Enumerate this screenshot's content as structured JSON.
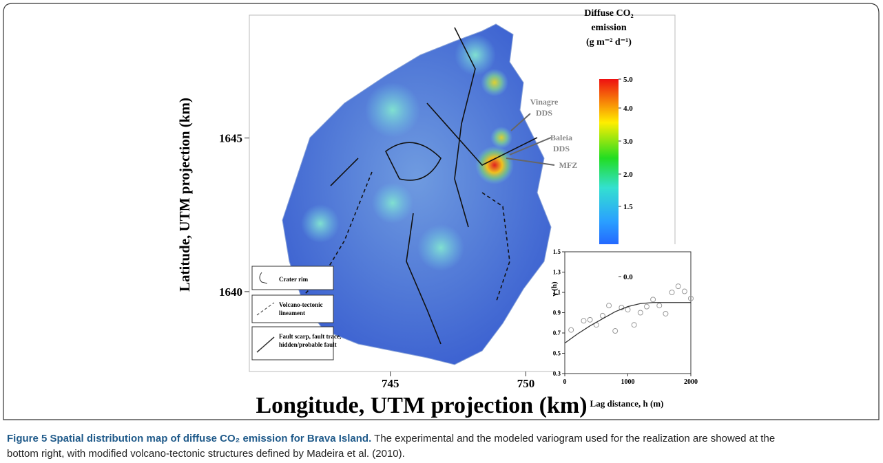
{
  "figure": {
    "map": {
      "xlabel": "Longitude, UTM projection (km)",
      "ylabel": "Latitude, UTM projection (km)",
      "xlim": [
        739.8,
        755.5
      ],
      "ylim": [
        1637.4,
        1649
      ],
      "xticks": [
        745,
        750
      ],
      "yticks": [
        1640,
        1645
      ],
      "annotations": [
        "Vinagre",
        "DDS",
        "Baleia",
        "DDS",
        "MFZ"
      ],
      "legend": [
        {
          "lines": [
            "Crater rim"
          ]
        },
        {
          "lines": [
            "Volcano-tectonic",
            "lineament"
          ]
        },
        {
          "lines": [
            "Fault scarp, fault trace,",
            "hidden/probable fault"
          ]
        }
      ]
    },
    "colorbar": {
      "title": [
        "Diffuse CO₂",
        "emission",
        "(g m⁻² d⁻¹)"
      ],
      "ticks": [
        {
          "value": 5,
          "label": "5.0"
        },
        {
          "value": 4,
          "label": "4.0"
        },
        {
          "value": 3,
          "label": "3.0"
        },
        {
          "value": 2,
          "label": "2.0"
        },
        {
          "value": 1.5,
          "label": "1.5"
        },
        {
          "value": 0,
          "label": "0.0"
        }
      ]
    },
    "variogram": {
      "type": "scatter",
      "xlabel": "Lag distance, h (m)",
      "ylabel": "γ (h)",
      "xlim": [
        0,
        2000
      ],
      "ylim": [
        0.3,
        1.5
      ],
      "xticks": [
        0,
        1000,
        2000
      ],
      "yticks": [
        0.3,
        0.5,
        0.7,
        0.9,
        1.1,
        1.3,
        1.5
      ],
      "points": {
        "x": [
          100,
          300,
          400,
          500,
          600,
          700,
          800,
          900,
          1000,
          1100,
          1200,
          1300,
          1400,
          1500,
          1600,
          1700,
          1800,
          1900,
          2000
        ],
        "y": [
          0.73,
          0.82,
          0.83,
          0.78,
          0.87,
          0.97,
          0.72,
          0.95,
          0.93,
          0.78,
          0.9,
          0.96,
          1.03,
          0.97,
          0.89,
          1.1,
          1.16,
          1.11,
          1.04
        ]
      },
      "model": {
        "x": [
          0,
          200,
          400,
          600,
          800,
          1000,
          1200,
          1400,
          1600,
          1800,
          2000
        ],
        "y": [
          0.6,
          0.69,
          0.77,
          0.84,
          0.91,
          0.96,
          0.99,
          1,
          1,
          1,
          1
        ]
      }
    }
  },
  "caption": {
    "title": "Figure 5 Spatial distribution map of diffuse CO₂ emission for Brava Island.",
    "text": "The experimental and the modeled variogram used for the realization are showed at the bottom right, with modified volcano-tectonic structures defined by Madeira et al. (2010)."
  }
}
